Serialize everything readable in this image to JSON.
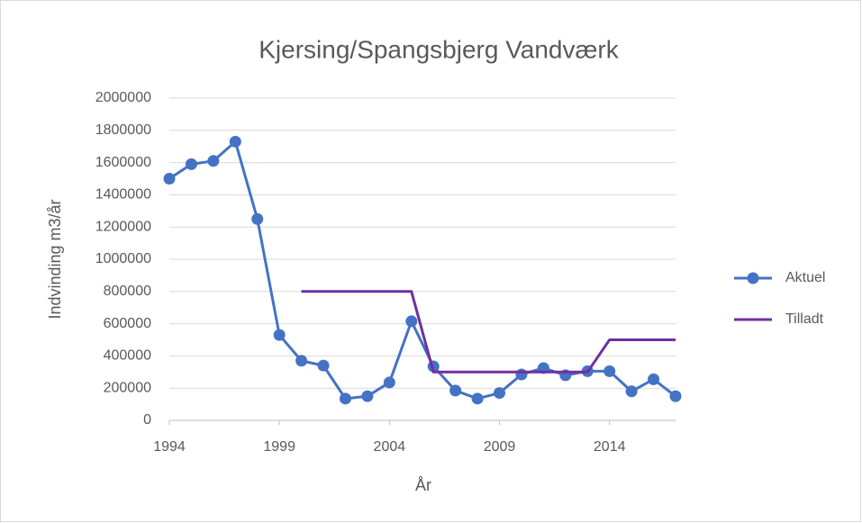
{
  "chart_data": {
    "type": "line",
    "title": "Kjersing/Spangsbjerg Vandværk",
    "x_label": "År",
    "y_label": "Indvinding m3/år",
    "x": [
      1994,
      1995,
      1996,
      1997,
      1998,
      1999,
      2000,
      2001,
      2002,
      2003,
      2004,
      2005,
      2006,
      2007,
      2008,
      2009,
      2010,
      2011,
      2012,
      2013,
      2014,
      2015,
      2016,
      2017
    ],
    "series": [
      {
        "name": "Aktuel",
        "color": "#4472c4",
        "marker": "circle",
        "values": [
          1500000,
          1590000,
          1610000,
          1730000,
          1250000,
          530000,
          370000,
          340000,
          135000,
          150000,
          235000,
          615000,
          335000,
          185000,
          135000,
          170000,
          285000,
          325000,
          280000,
          305000,
          305000,
          180000,
          255000,
          150000
        ]
      },
      {
        "name": "Tilladt",
        "color": "#7030a0",
        "marker": "none",
        "values": [
          null,
          null,
          null,
          null,
          null,
          null,
          800000,
          800000,
          800000,
          800000,
          800000,
          800000,
          300000,
          300000,
          300000,
          300000,
          300000,
          300000,
          300000,
          300000,
          500000,
          500000,
          500000,
          500000
        ]
      }
    ],
    "xlim": [
      1994,
      2017
    ],
    "xticks": [
      1994,
      1999,
      2004,
      2009,
      2014
    ],
    "ylim": [
      0,
      2000000
    ],
    "yticks": [
      0,
      200000,
      400000,
      600000,
      800000,
      1000000,
      1200000,
      1400000,
      1600000,
      1800000,
      2000000
    ],
    "grid": true,
    "legend": "right"
  }
}
